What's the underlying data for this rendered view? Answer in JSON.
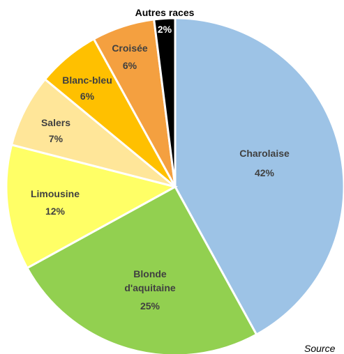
{
  "chart_data": {
    "type": "pie",
    "title": "",
    "slices": [
      {
        "name": "Charolaise",
        "value": 42,
        "label": "42%",
        "color": "#9DC3E6",
        "text_color": "#404040"
      },
      {
        "name": "Blonde d'aquitaine",
        "value": 25,
        "label": "25%",
        "color": "#92D050",
        "text_color": "#404040"
      },
      {
        "name": "Limousine",
        "value": 12,
        "label": "12%",
        "color": "#FFFF66",
        "text_color": "#404040"
      },
      {
        "name": "Salers",
        "value": 7,
        "label": "7%",
        "color": "#FFE699",
        "text_color": "#404040"
      },
      {
        "name": "Blanc-bleu",
        "value": 6,
        "label": "6%",
        "color": "#FFC000",
        "text_color": "#404040"
      },
      {
        "name": "Croisée",
        "value": 6,
        "label": "6%",
        "color": "#F4A040",
        "text_color": "#404040"
      },
      {
        "name": "Autres races",
        "value": 2,
        "label": "2%",
        "color": "#000000",
        "text_color": "#ffffff"
      }
    ],
    "start_angle_deg": 0,
    "direction": "clockwise",
    "legend": "none",
    "slice_border_color": "#ffffff"
  },
  "footer": {
    "source_text": "Source"
  }
}
